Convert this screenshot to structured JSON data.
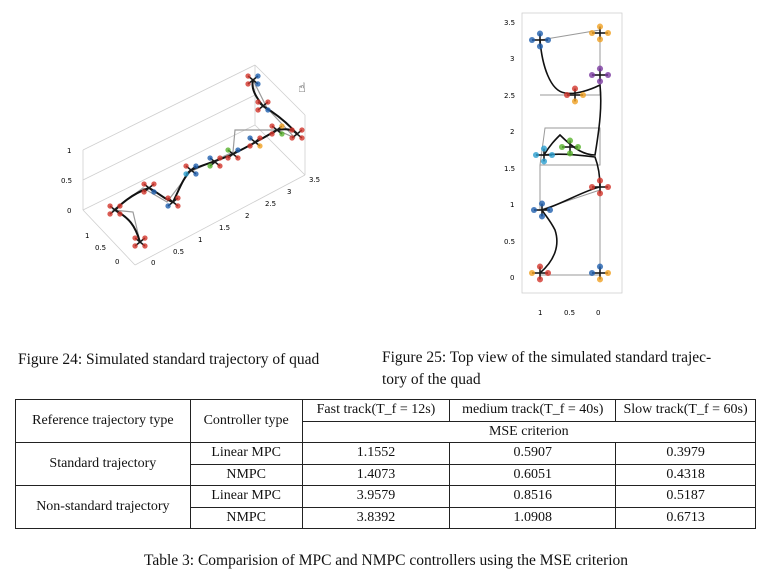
{
  "figure24": {
    "caption": "Figure 24: Simulated standard trajectory of quad",
    "z_ticks": [
      "1",
      "0.5",
      "0"
    ],
    "x_ticks": [
      "0",
      "0.5",
      "1",
      "1.5",
      "2",
      "2.5",
      "3",
      "3.5"
    ],
    "y_ticks": [
      "1",
      "0.5",
      "0"
    ]
  },
  "figure25": {
    "caption_line1": "Figure 25: Top view of the simulated standard trajec-",
    "caption_line2": "tory of the quad",
    "y_ticks": [
      "3.5",
      "3",
      "2.5",
      "2",
      "1.5",
      "1",
      "0.5",
      "0"
    ],
    "x_ticks": [
      "1",
      "0.5",
      "0"
    ]
  },
  "table": {
    "headers": {
      "reference": "Reference trajectory type",
      "controller": "Controller type",
      "fast": "Fast track(T_f = 12s)",
      "medium": "medium track(T_f = 40s)",
      "slow": "Slow track(T_f = 60s)",
      "criterion": "MSE criterion"
    },
    "groups": [
      {
        "name": "Standard trajectory",
        "rows": [
          {
            "controller": "Linear MPC",
            "fast": "1.1552",
            "medium": "0.5907",
            "slow": "0.3979"
          },
          {
            "controller": "NMPC",
            "fast": "1.4073",
            "medium": "0.6051",
            "slow": "0.4318"
          }
        ]
      },
      {
        "name": "Non-standard trajectory",
        "rows": [
          {
            "controller": "Linear MPC",
            "fast": "3.9579",
            "medium": "0.8516",
            "slow": "0.5187"
          },
          {
            "controller": "NMPC",
            "fast": "3.8392",
            "medium": "1.0908",
            "slow": "0.6713"
          }
        ]
      }
    ],
    "caption": "Table 3: Comparision of MPC and NMPC controllers using the MSE criterion"
  },
  "colors": {
    "quad_colors": [
      "#d2342a",
      "#1f5fae",
      "#f0a020",
      "#7a3aa0",
      "#59b32d",
      "#2a9fd0"
    ]
  }
}
